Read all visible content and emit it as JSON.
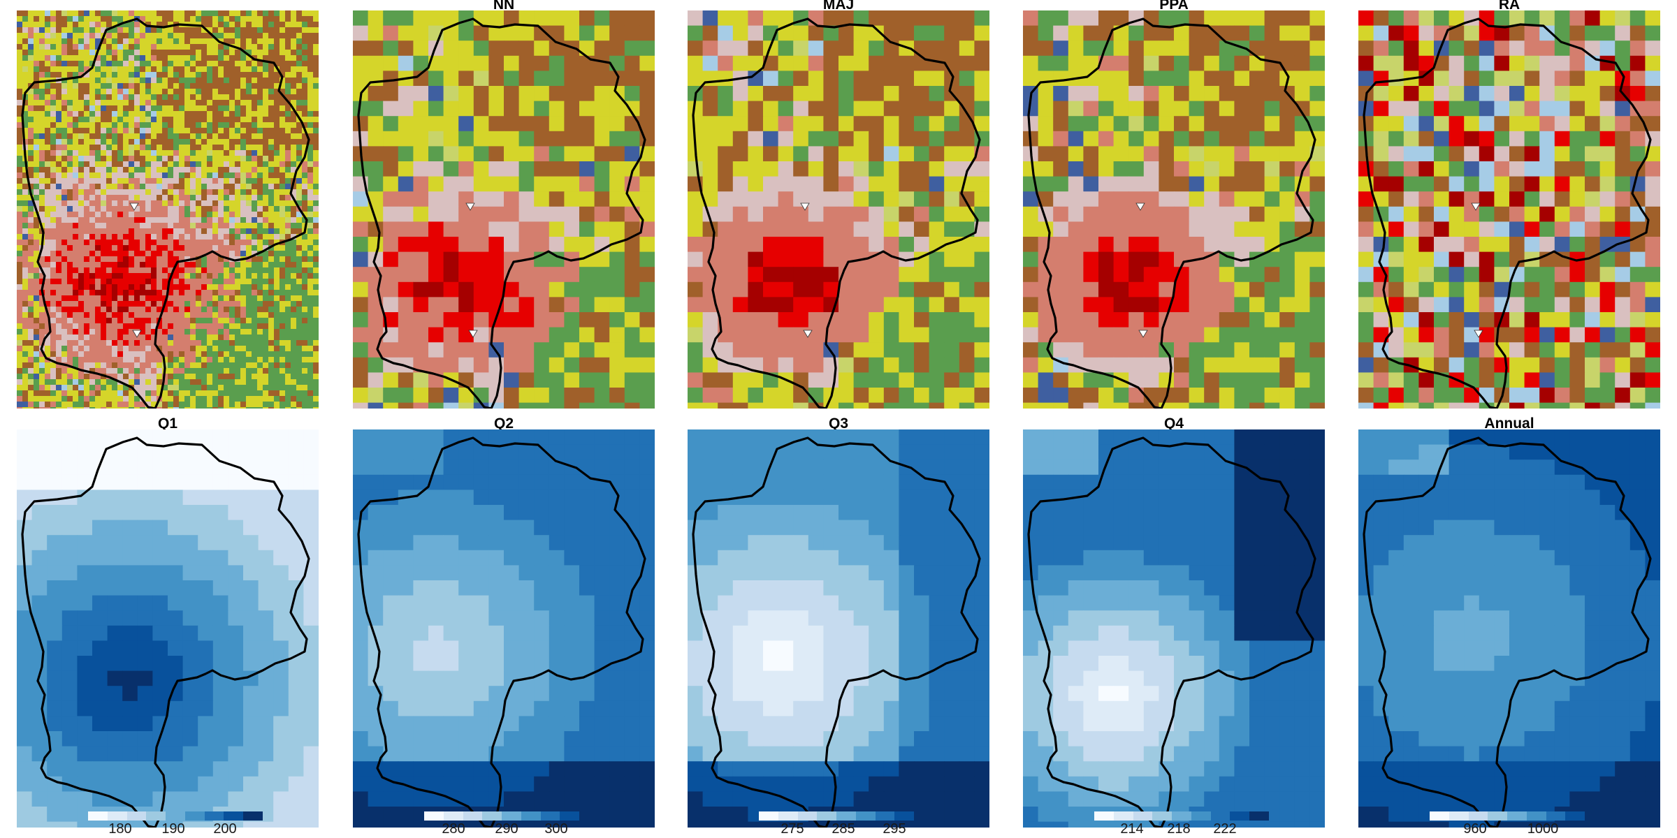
{
  "top_row": {
    "panels": [
      {
        "id": "reference",
        "title": "",
        "style": "fine"
      },
      {
        "id": "nn",
        "title": "NN",
        "style": "coarse"
      },
      {
        "id": "maj",
        "title": "MAJ",
        "style": "smooth"
      },
      {
        "id": "ppa",
        "title": "PPA",
        "style": "smoother"
      },
      {
        "id": "ra",
        "title": "RA",
        "style": "random"
      }
    ],
    "landcover_palette": {
      "urban_continuous": "#a50000",
      "urban_dense": "#e60000",
      "urban_discontinuous": "#d47e6e",
      "urban_sparse": "#d9c0c0",
      "arable": "#d5d52a",
      "arable_light": "#c8d46a",
      "pasture": "#a0602a",
      "forest": "#5a9e4e",
      "grassland": "#a8c890",
      "water": "#3f5fa0",
      "wetland": "#a6cce6",
      "bare": "#d8d8d8"
    },
    "station_marker": "triangle"
  },
  "bottom_row": {
    "panels": [
      {
        "id": "q1",
        "title": "Q1",
        "colorbar": {
          "ticks": [
            "180",
            "190",
            "200"
          ]
        }
      },
      {
        "id": "q2",
        "title": "Q2",
        "colorbar": {
          "ticks": [
            "280",
            "290",
            "300"
          ]
        }
      },
      {
        "id": "q3",
        "title": "Q3",
        "colorbar": {
          "ticks": [
            "275",
            "285",
            "295"
          ]
        }
      },
      {
        "id": "q4",
        "title": "Q4",
        "colorbar": {
          "ticks": [
            "214",
            "218",
            "222"
          ]
        }
      },
      {
        "id": "annual",
        "title": "Annual",
        "colorbar": {
          "ticks": [
            "960",
            "1000"
          ]
        }
      }
    ],
    "blues_palette": [
      "#f7fbff",
      "#deebf7",
      "#c6dbef",
      "#9ecae1",
      "#6baed6",
      "#4292c6",
      "#2171b5",
      "#08519c",
      "#08306b"
    ]
  },
  "boundary_color": "#000000"
}
